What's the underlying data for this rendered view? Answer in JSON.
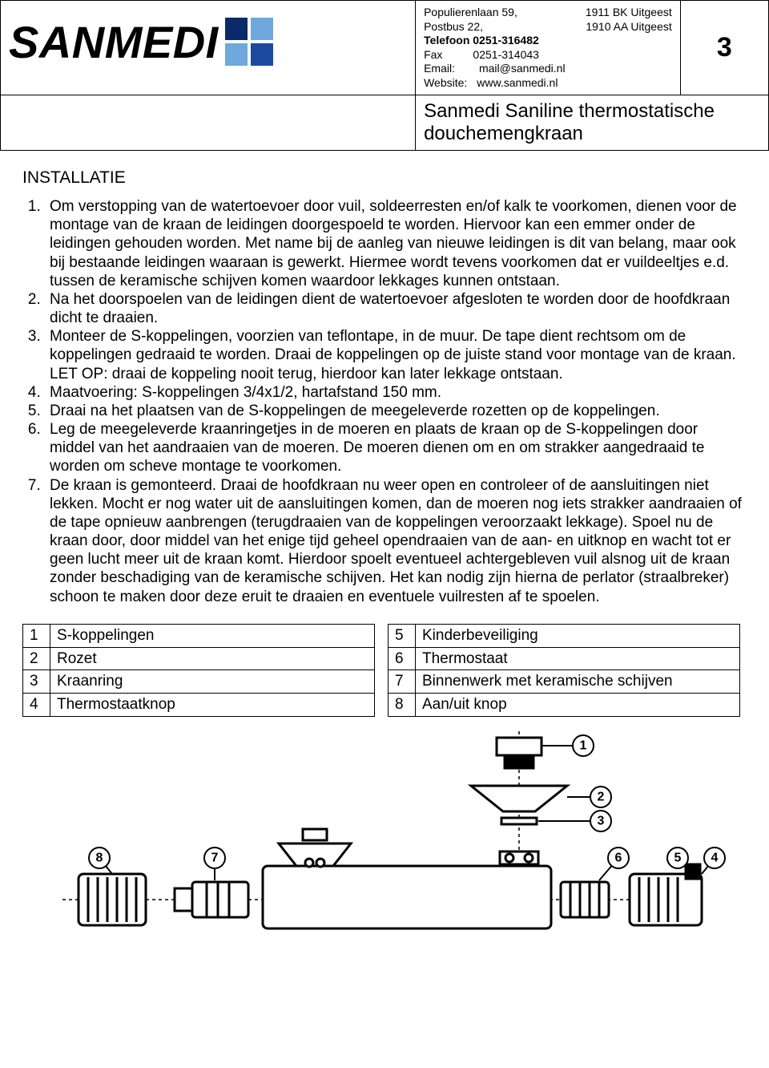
{
  "colors": {
    "text": "#000000",
    "background": "#ffffff",
    "border": "#000000",
    "logo_sq_tl": "#0a2a6b",
    "logo_sq_tr": "#6fa8dc",
    "logo_sq_bl": "#6fa8dc",
    "logo_sq_br": "#1c4aa0"
  },
  "header": {
    "logo_text": "SANMEDI",
    "address": {
      "line1_left": "Populierenlaan 59,",
      "line1_right": "1911 BK  Uitgeest",
      "line2_left": "Postbus 22,",
      "line2_right": "1910 AA  Uitgeest",
      "phone_label": "Telefoon 0251-316482",
      "fax_label": "Fax",
      "fax_value": "0251-314043",
      "email_label": "Email:",
      "email_value": "mail@sanmedi.nl",
      "web_label": "Website:",
      "web_value": "www.sanmedi.nl"
    },
    "page_number": "3",
    "title": "Sanmedi Saniline thermostatische douchemengkraan"
  },
  "section_heading": "INSTALLATIE",
  "steps": [
    "Om verstopping van de watertoevoer door vuil, soldeerresten en/of kalk te voorkomen, dienen voor de montage van de kraan de leidingen doorgespoeld te worden. Hiervoor kan een emmer onder de leidingen gehouden worden. Met name bij de aanleg van nieuwe leidingen is dit van belang, maar ook bij bestaande leidingen waaraan is gewerkt. Hiermee wordt tevens voorkomen dat er vuildeeltjes e.d. tussen de keramische schijven komen waardoor lekkages kunnen ontstaan.",
    "Na het doorspoelen van de leidingen dient de watertoevoer afgesloten te worden door de hoofdkraan dicht te draaien.",
    "Monteer de S-koppelingen, voorzien van teflontape, in de muur. De tape dient rechtsom om de koppelingen gedraaid te worden. Draai de koppelingen op de juiste stand voor montage van de kraan. LET OP: draai de koppeling nooit terug, hierdoor kan later lekkage ontstaan.",
    "Maatvoering: S-koppelingen 3/4x1/2, hartafstand 150 mm.",
    "Draai na het plaatsen van de S-koppelingen de meegeleverde rozetten op de koppelingen.",
    "Leg de meegeleverde kraanringetjes in de moeren en plaats de kraan op de S-koppelingen door middel van het aandraaien van de moeren. De moeren dienen om en om strakker aangedraaid te worden om scheve montage te voorkomen.",
    "De kraan is gemonteerd. Draai de hoofdkraan nu weer open en controleer of de aansluitingen niet lekken. Mocht er nog water uit de aansluitingen komen, dan de moeren nog iets strakker aandraaien of de tape opnieuw aanbrengen (terugdraaien van de koppelingen veroorzaakt lekkage). Spoel nu de kraan door, door middel van het enige tijd geheel opendraaien van de aan- en uitknop en wacht tot er geen lucht meer uit de kraan komt. Hierdoor spoelt eventueel achtergebleven vuil alsnog uit de kraan zonder beschadiging van de keramische schijven. Het kan nodig zijn hierna de perlator (straalbreker) schoon te maken door deze eruit te draaien en eventuele vuilresten af te spoelen."
  ],
  "parts_left": [
    {
      "n": "1",
      "label": "S-koppelingen"
    },
    {
      "n": "2",
      "label": "Rozet"
    },
    {
      "n": "3",
      "label": "Kraanring"
    },
    {
      "n": "4",
      "label": "Thermostaatknop"
    }
  ],
  "parts_right": [
    {
      "n": "5",
      "label": "Kinderbeveiliging"
    },
    {
      "n": "6",
      "label": "Thermostaat"
    },
    {
      "n": "7",
      "label": "Binnenwerk met keramische schijven"
    },
    {
      "n": "8",
      "label": "Aan/uit knop"
    }
  ],
  "diagram": {
    "view_w": 900,
    "view_h": 280,
    "callouts": [
      "1",
      "2",
      "3",
      "4",
      "5",
      "6",
      "7",
      "8"
    ]
  }
}
